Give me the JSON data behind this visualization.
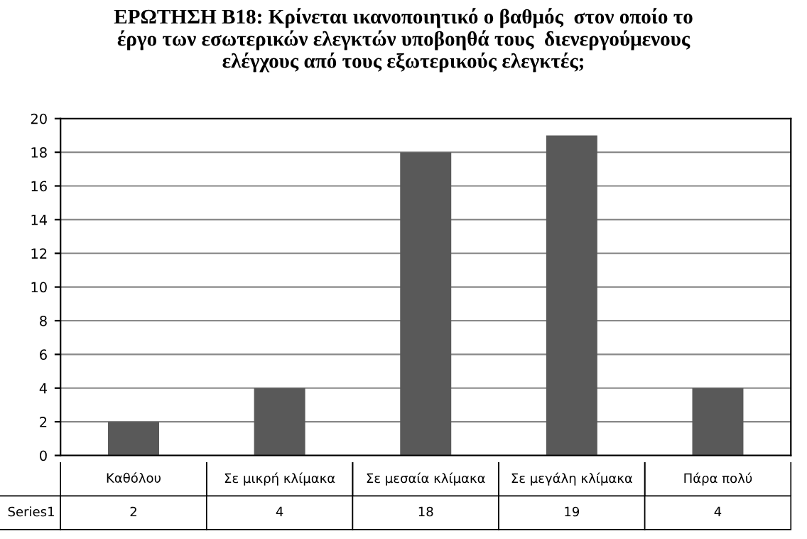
{
  "chart_data": {
    "type": "bar",
    "title": "ΕΡΩΤΗΣΗ Β18: Κρίνεται ικανοποιητικό ο βαθμός  στον οποίο το\nέργο των εσωτερικών ελεγκτών υποβοηθά τους  διενεργούμενους\nελέγχους από τους εξωτερικούς ελεγκτές;",
    "categories": [
      "Καθόλου",
      "Σε μικρή κλίμακα",
      "Σε μεσαία κλίμακα",
      "Σε μεγάλη κλίμακα",
      "Πάρα πολύ"
    ],
    "series": [
      {
        "name": "Series1",
        "color": "#595959",
        "values": [
          2,
          4,
          18,
          19,
          4
        ]
      }
    ],
    "ylim": [
      0,
      20
    ],
    "yticks": [
      0,
      2,
      4,
      6,
      8,
      10,
      12,
      14,
      16,
      18,
      20
    ],
    "grid": "y",
    "data_labels": true
  }
}
